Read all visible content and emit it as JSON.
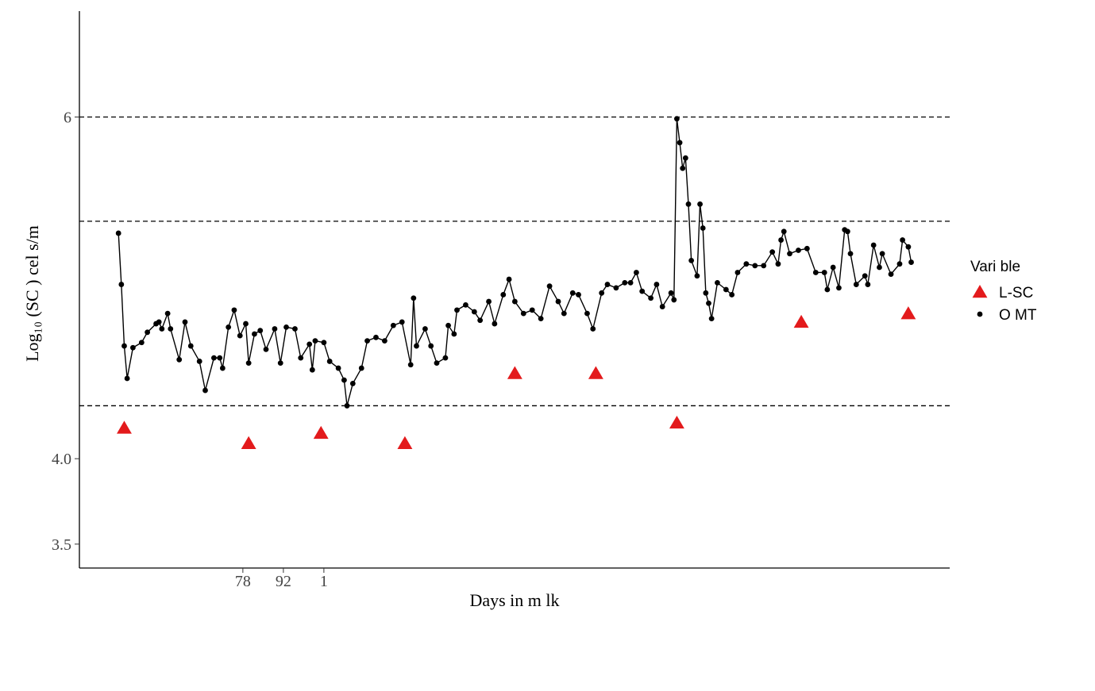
{
  "chart_data": {
    "type": "line",
    "ylabel": "Log₁₀ (SC  ) cel s/m",
    "xlabel": "Days in m lk",
    "legend_title": "Vari ble",
    "legend_position": "right",
    "xlim": [
      21.5,
      322.3
    ],
    "ylim": [
      3.36,
      6.62
    ],
    "xticks": [
      78,
      92,
      {
        "value": 106,
        "label": "1"
      }
    ],
    "yticks": [
      3.5,
      {
        "value": 4,
        "label": "4.0"
      },
      6
    ],
    "hlines": [
      6,
      5.39,
      4.31
    ],
    "series": [
      {
        "name": "L-SC",
        "color": "#e31a1c",
        "marker": "triangle",
        "x": [
          37,
          80,
          105,
          134,
          172,
          200,
          228,
          271,
          308
        ],
        "values": [
          4.18,
          4.09,
          4.15,
          4.09,
          4.5,
          4.5,
          4.21,
          4.8,
          4.85
        ]
      },
      {
        "name": "O  MT",
        "color": "#000000",
        "marker": "circle-line",
        "x": [
          35,
          36,
          37,
          38,
          40,
          43,
          45,
          48,
          49,
          50,
          52,
          53,
          56,
          58,
          60,
          63,
          65,
          68,
          70,
          71,
          73,
          75,
          77,
          79,
          80,
          82,
          84,
          86,
          89,
          91,
          93,
          96,
          98,
          101,
          102,
          103,
          106,
          108,
          111,
          113,
          114,
          116,
          119,
          121,
          124,
          127,
          130,
          133,
          136,
          137,
          138,
          141,
          143,
          145,
          148,
          149,
          151,
          152,
          155,
          158,
          160,
          163,
          165,
          168,
          170,
          172,
          175,
          178,
          181,
          184,
          187,
          189,
          192,
          194,
          197,
          199,
          202,
          204,
          207,
          210,
          212,
          214,
          216,
          219,
          221,
          223,
          226,
          227,
          228,
          229,
          230,
          231,
          232,
          233,
          235,
          236,
          237,
          238,
          239,
          240,
          242,
          245,
          247,
          249,
          252,
          255,
          258,
          261,
          263,
          264,
          265,
          267,
          270,
          273,
          276,
          279,
          280,
          282,
          284,
          286,
          287,
          288,
          290,
          293,
          294,
          296,
          298,
          299,
          302,
          305,
          306,
          308,
          309
        ],
        "values": [
          5.32,
          5.02,
          4.66,
          4.47,
          4.65,
          4.68,
          4.74,
          4.79,
          4.8,
          4.76,
          4.85,
          4.76,
          4.58,
          4.8,
          4.66,
          4.57,
          4.4,
          4.59,
          4.59,
          4.53,
          4.77,
          4.87,
          4.72,
          4.79,
          4.56,
          4.73,
          4.75,
          4.64,
          4.76,
          4.56,
          4.77,
          4.76,
          4.59,
          4.67,
          4.52,
          4.69,
          4.68,
          4.57,
          4.53,
          4.46,
          4.31,
          4.44,
          4.53,
          4.69,
          4.71,
          4.69,
          4.78,
          4.8,
          4.55,
          4.94,
          4.66,
          4.76,
          4.66,
          4.56,
          4.59,
          4.78,
          4.73,
          4.87,
          4.9,
          4.86,
          4.81,
          4.92,
          4.79,
          4.96,
          5.05,
          4.92,
          4.85,
          4.87,
          4.82,
          5.01,
          4.92,
          4.85,
          4.97,
          4.96,
          4.85,
          4.76,
          4.97,
          5.02,
          5.0,
          5.03,
          5.03,
          5.09,
          4.98,
          4.94,
          5.02,
          4.89,
          4.97,
          4.93,
          5.99,
          5.85,
          5.7,
          5.76,
          5.49,
          5.16,
          5.07,
          5.49,
          5.35,
          4.97,
          4.91,
          4.82,
          5.03,
          4.99,
          4.96,
          5.09,
          5.14,
          5.13,
          5.13,
          5.21,
          5.14,
          5.28,
          5.33,
          5.2,
          5.22,
          5.23,
          5.09,
          5.09,
          4.99,
          5.12,
          5.0,
          5.34,
          5.33,
          5.2,
          5.02,
          5.07,
          5.02,
          5.25,
          5.12,
          5.2,
          5.08,
          5.14,
          5.28,
          5.24,
          5.15
        ]
      }
    ]
  }
}
